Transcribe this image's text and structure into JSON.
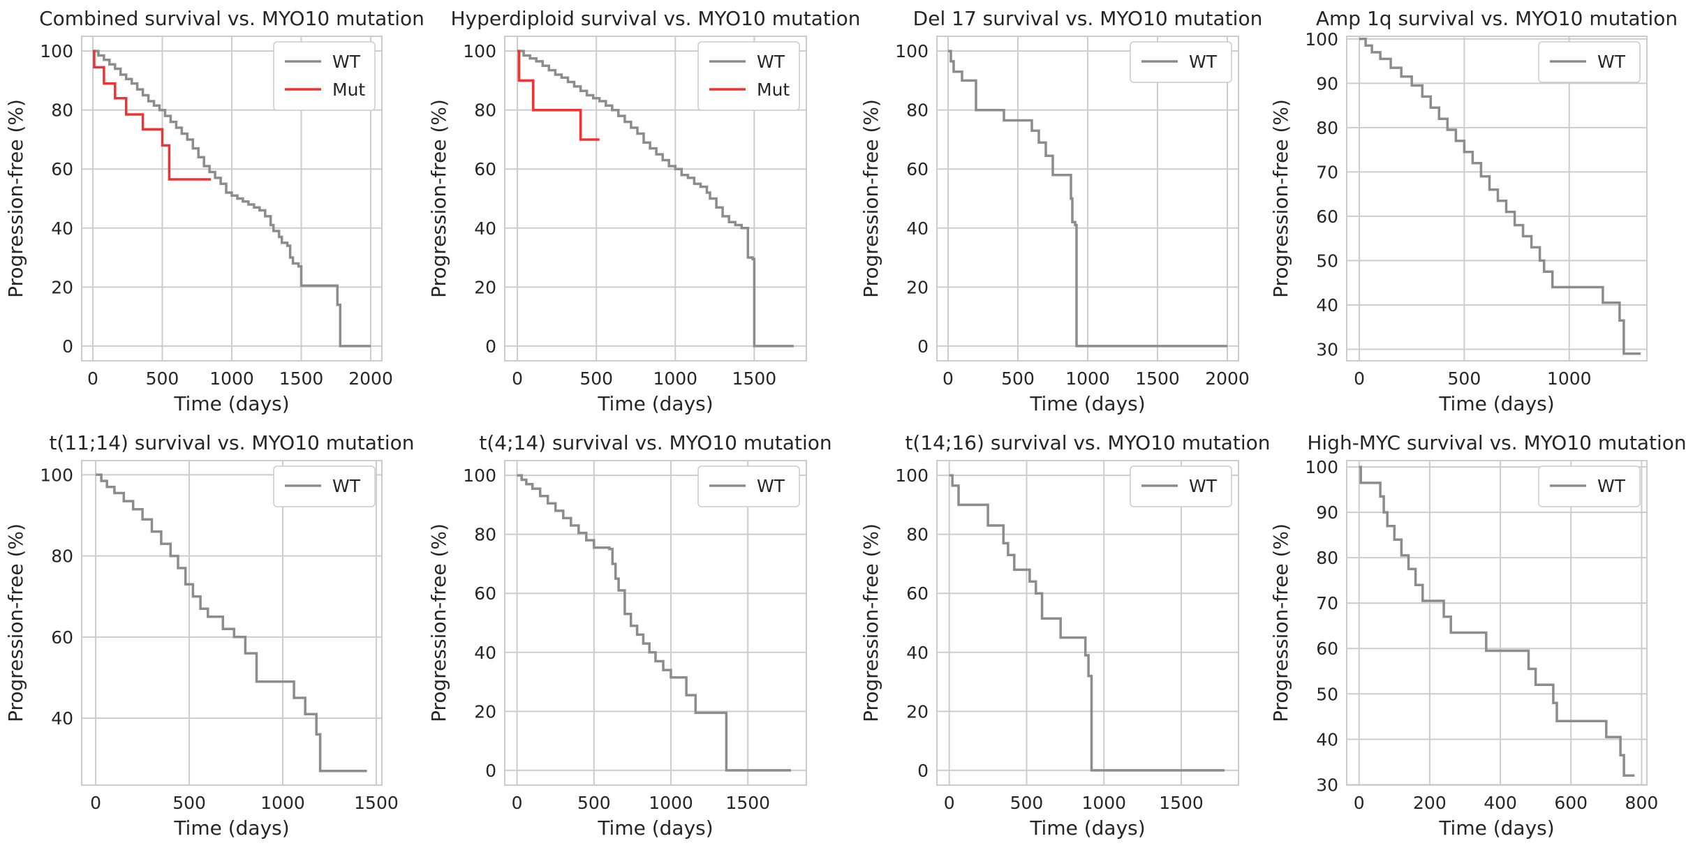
{
  "colors": {
    "WT": "#8c8c8c",
    "Mut": "#f03232"
  },
  "chart_data": [
    {
      "type": "line",
      "title": "Combined survival vs. MYO10 mutation",
      "xlabel": "Time (days)",
      "ylabel": "Progression-free (%)",
      "xlim": [
        -80,
        2080
      ],
      "ylim": [
        -5,
        105
      ],
      "xticks": [
        0,
        500,
        1000,
        1500,
        2000
      ],
      "yticks": [
        0,
        20,
        40,
        60,
        80,
        100
      ],
      "legend": "upper-right",
      "grid": true,
      "series": [
        {
          "name": "WT",
          "x": [
            0,
            40,
            80,
            120,
            160,
            200,
            240,
            280,
            320,
            360,
            400,
            440,
            480,
            520,
            560,
            600,
            640,
            680,
            720,
            760,
            800,
            840,
            880,
            920,
            960,
            1000,
            1040,
            1080,
            1120,
            1160,
            1200,
            1240,
            1280,
            1300,
            1340,
            1360,
            1400,
            1420,
            1440,
            1480,
            1500,
            1760,
            1780,
            2000
          ],
          "y": [
            100,
            98.5,
            97,
            95.5,
            94,
            92,
            90.5,
            89,
            87,
            85,
            83,
            81.5,
            80,
            78,
            76,
            74,
            72,
            70,
            67,
            64,
            61,
            59,
            57,
            55,
            52,
            51,
            50,
            49,
            48,
            47,
            46,
            44,
            41,
            39,
            37,
            35,
            34,
            30,
            28,
            27,
            20.5,
            14,
            0,
            0
          ]
        },
        {
          "name": "Mut",
          "x": [
            0,
            10,
            80,
            160,
            240,
            360,
            500,
            550,
            850
          ],
          "y": [
            100,
            94.5,
            89,
            84,
            78.5,
            73.5,
            68,
            56.5,
            56.5
          ]
        }
      ]
    },
    {
      "type": "line",
      "title": "Hyperdiploid survival vs. MYO10 mutation",
      "xlabel": "Time (days)",
      "ylabel": "Progression-free (%)",
      "xlim": [
        -80,
        1830
      ],
      "ylim": [
        -5,
        105
      ],
      "xticks": [
        0,
        500,
        1000,
        1500
      ],
      "yticks": [
        0,
        20,
        40,
        60,
        80,
        100
      ],
      "legend": "upper-right",
      "grid": true,
      "series": [
        {
          "name": "WT",
          "x": [
            0,
            40,
            80,
            120,
            160,
            200,
            240,
            280,
            320,
            360,
            400,
            440,
            480,
            520,
            560,
            600,
            640,
            680,
            720,
            760,
            800,
            840,
            880,
            920,
            960,
            1000,
            1040,
            1080,
            1120,
            1160,
            1200,
            1220,
            1260,
            1300,
            1340,
            1380,
            1420,
            1460,
            1490,
            1500,
            1750
          ],
          "y": [
            100,
            98.5,
            97.5,
            96.5,
            95,
            93.5,
            92,
            91,
            89.5,
            88,
            86.5,
            85,
            84,
            83,
            81.5,
            80,
            78,
            76,
            74,
            72,
            69,
            67,
            65,
            63,
            61,
            60,
            58,
            57,
            55,
            54,
            52,
            50,
            47,
            44,
            42,
            41,
            40,
            30,
            29.5,
            0,
            0
          ]
        },
        {
          "name": "Mut",
          "x": [
            0,
            10,
            100,
            400,
            520
          ],
          "y": [
            100,
            90,
            80,
            70,
            70
          ]
        }
      ]
    },
    {
      "type": "line",
      "title": "Del 17 survival vs. MYO10 mutation",
      "xlabel": "Time (days)",
      "ylabel": "Progression-free (%)",
      "xlim": [
        -80,
        2080
      ],
      "ylim": [
        -5,
        105
      ],
      "xticks": [
        0,
        500,
        1000,
        1500,
        2000
      ],
      "yticks": [
        0,
        20,
        40,
        60,
        80,
        100
      ],
      "legend": "upper-right",
      "grid": true,
      "series": [
        {
          "name": "WT",
          "x": [
            0,
            20,
            40,
            100,
            200,
            400,
            600,
            650,
            700,
            750,
            880,
            890,
            910,
            920,
            2000
          ],
          "y": [
            100,
            96.5,
            93,
            90,
            80,
            76.5,
            73,
            69,
            64.5,
            58,
            50,
            42,
            41,
            0,
            0
          ]
        }
      ]
    },
    {
      "type": "line",
      "title": "Amp 1q survival vs. MYO10 mutation",
      "xlabel": "Time (days)",
      "ylabel": "Progression-free (%)",
      "xlim": [
        -60,
        1370
      ],
      "ylim": [
        27.4,
        100.6
      ],
      "xticks": [
        0,
        500,
        1000
      ],
      "yticks": [
        30,
        40,
        50,
        60,
        70,
        80,
        90,
        100
      ],
      "legend": "upper-right",
      "grid": true,
      "series": [
        {
          "name": "WT",
          "x": [
            0,
            30,
            60,
            100,
            150,
            200,
            250,
            300,
            340,
            380,
            420,
            460,
            500,
            540,
            580,
            620,
            660,
            700,
            740,
            780,
            820,
            860,
            880,
            920,
            1160,
            1240,
            1260,
            1300,
            1340
          ],
          "y": [
            100,
            98.5,
            97,
            95.5,
            93.5,
            91.5,
            89.5,
            87,
            84.5,
            82,
            79.5,
            77,
            74.5,
            72,
            69,
            66,
            63.5,
            61,
            58,
            55.5,
            53,
            50,
            47.5,
            44,
            40.5,
            36.5,
            29,
            29,
            29
          ]
        }
      ]
    },
    {
      "type": "line",
      "title": "t(11;14) survival vs. MYO10 mutation",
      "xlabel": "Time (days)",
      "ylabel": "Progression-free (%)",
      "xlim": [
        -75,
        1530
      ],
      "ylim": [
        23.5,
        103.5
      ],
      "xticks": [
        0,
        500,
        1000,
        1500
      ],
      "yticks": [
        40,
        60,
        80,
        100
      ],
      "legend": "upper-right",
      "grid": true,
      "series": [
        {
          "name": "WT",
          "x": [
            0,
            30,
            60,
            100,
            150,
            200,
            250,
            300,
            350,
            400,
            440,
            480,
            520,
            560,
            600,
            680,
            740,
            800,
            860,
            1060,
            1120,
            1180,
            1200,
            1450
          ],
          "y": [
            100,
            98.5,
            97,
            95.5,
            93.5,
            91.5,
            89,
            86,
            83,
            80,
            77,
            73,
            70,
            67,
            65,
            62,
            60,
            56,
            49,
            45,
            41,
            36,
            27,
            27
          ]
        }
      ]
    },
    {
      "type": "line",
      "title": "t(4;14) survival vs. MYO10 mutation",
      "xlabel": "Time (days)",
      "ylabel": "Progression-free (%)",
      "xlim": [
        -80,
        1880
      ],
      "ylim": [
        -5,
        105
      ],
      "xticks": [
        0,
        500,
        1000,
        1500
      ],
      "yticks": [
        0,
        20,
        40,
        60,
        80,
        100
      ],
      "legend": "upper-right",
      "grid": true,
      "series": [
        {
          "name": "WT",
          "x": [
            0,
            30,
            60,
            100,
            150,
            200,
            250,
            300,
            350,
            400,
            450,
            500,
            600,
            620,
            640,
            660,
            700,
            740,
            780,
            820,
            860,
            900,
            950,
            1000,
            1100,
            1160,
            1340,
            1360,
            1780
          ],
          "y": [
            100,
            98.5,
            97,
            95.5,
            93,
            90.5,
            88,
            85.5,
            83,
            80.5,
            78,
            75.5,
            75,
            70,
            65,
            61,
            53,
            49,
            46,
            43,
            40,
            37,
            34,
            31.5,
            25.5,
            19.5,
            19.5,
            0,
            0
          ]
        }
      ]
    },
    {
      "type": "line",
      "title": "t(14;16) survival vs. MYO10 mutation",
      "xlabel": "Time (days)",
      "ylabel": "Progression-free (%)",
      "xlim": [
        -80,
        1870
      ],
      "ylim": [
        -5,
        105
      ],
      "xticks": [
        0,
        500,
        1000,
        1500
      ],
      "yticks": [
        0,
        20,
        40,
        60,
        80,
        100
      ],
      "legend": "upper-right",
      "grid": true,
      "series": [
        {
          "name": "WT",
          "x": [
            0,
            20,
            60,
            250,
            350,
            380,
            420,
            520,
            560,
            600,
            720,
            880,
            900,
            920,
            1780
          ],
          "y": [
            100,
            96.5,
            90,
            83,
            77,
            73,
            68,
            64,
            60,
            51.5,
            45,
            39,
            32,
            0,
            0
          ]
        }
      ]
    },
    {
      "type": "line",
      "title": "High-MYC survival vs. MYO10 mutation",
      "xlabel": "Time (days)",
      "ylabel": "Progression-free (%)",
      "xlim": [
        -35,
        815
      ],
      "ylim": [
        29.9,
        101.4
      ],
      "xticks": [
        0,
        200,
        400,
        600,
        800
      ],
      "yticks": [
        30,
        40,
        50,
        60,
        70,
        80,
        90,
        100
      ],
      "legend": "upper-right",
      "grid": true,
      "series": [
        {
          "name": "WT",
          "x": [
            0,
            5,
            60,
            70,
            80,
            100,
            120,
            140,
            160,
            180,
            240,
            260,
            360,
            480,
            500,
            550,
            560,
            700,
            740,
            750,
            760,
            780
          ],
          "y": [
            100,
            96.5,
            93.5,
            90,
            87,
            84,
            80.5,
            77.5,
            74,
            70.5,
            67,
            63.5,
            59.5,
            55.5,
            52,
            48,
            44,
            40.5,
            36.5,
            32,
            32,
            32
          ]
        }
      ]
    }
  ]
}
